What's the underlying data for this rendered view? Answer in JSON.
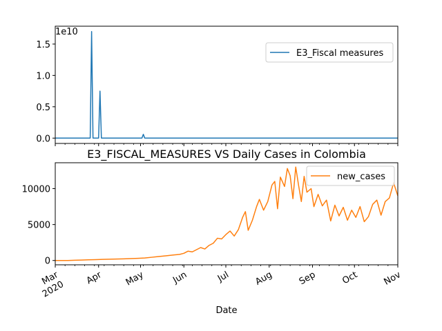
{
  "chart_data": [
    {
      "type": "line",
      "title": "",
      "ylabel": "",
      "xlabel": "",
      "y_offset_label": "1e10",
      "ylim": [
        -0.085,
        1.785
      ],
      "yticks": [
        0.0,
        0.5,
        1.0,
        1.5
      ],
      "yticklabels": [
        "0.0",
        "0.5",
        "1.0",
        "1.5"
      ],
      "legend": {
        "position": "top-right",
        "entries": [
          "E3_Fiscal measures"
        ]
      },
      "color": "#1f77b4",
      "series": [
        {
          "name": "E3_Fiscal measures",
          "points": [
            [
              "2020-03-01",
              0
            ],
            [
              "2020-03-26",
              0
            ],
            [
              "2020-03-27",
              1.7
            ],
            [
              "2020-03-28",
              0
            ],
            [
              "2020-04-01",
              0
            ],
            [
              "2020-04-02",
              0.75
            ],
            [
              "2020-04-03",
              0
            ],
            [
              "2020-05-02",
              0
            ],
            [
              "2020-05-03",
              0.06
            ],
            [
              "2020-05-04",
              0
            ],
            [
              "2020-11-01",
              0
            ]
          ]
        }
      ]
    },
    {
      "type": "line",
      "title": "E3_FISCAL_MEASURES VS Daily Cases in Colombia",
      "xlabel": "Date",
      "ylabel": "",
      "ylim": [
        -600,
        13600
      ],
      "yticks": [
        0,
        5000,
        10000
      ],
      "yticklabels": [
        "0",
        "5000",
        "10000"
      ],
      "xlim": [
        "2020-03-01",
        "2020-11-01"
      ],
      "xticks": [
        "2020-03-01",
        "2020-04-01",
        "2020-05-01",
        "2020-06-01",
        "2020-07-01",
        "2020-08-01",
        "2020-09-01",
        "2020-10-01",
        "2020-11-01"
      ],
      "xticklabels": [
        "Mar",
        "Apr",
        "May",
        "Jun",
        "Jul",
        "Aug",
        "Sep",
        "Oct",
        "Nov"
      ],
      "year_label": "2020",
      "legend": {
        "position": "top-right",
        "entries": [
          "new_cases"
        ]
      },
      "color": "#ff7f0e",
      "series": [
        {
          "name": "new_cases",
          "points": [
            [
              "2020-03-01",
              0
            ],
            [
              "2020-03-10",
              3
            ],
            [
              "2020-03-15",
              30
            ],
            [
              "2020-03-20",
              60
            ],
            [
              "2020-03-25",
              100
            ],
            [
              "2020-03-30",
              120
            ],
            [
              "2020-04-04",
              150
            ],
            [
              "2020-04-09",
              180
            ],
            [
              "2020-04-14",
              200
            ],
            [
              "2020-04-19",
              230
            ],
            [
              "2020-04-24",
              260
            ],
            [
              "2020-04-29",
              300
            ],
            [
              "2020-05-04",
              350
            ],
            [
              "2020-05-09",
              450
            ],
            [
              "2020-05-14",
              550
            ],
            [
              "2020-05-19",
              650
            ],
            [
              "2020-05-24",
              750
            ],
            [
              "2020-05-29",
              850
            ],
            [
              "2020-06-01",
              1000
            ],
            [
              "2020-06-04",
              1300
            ],
            [
              "2020-06-07",
              1200
            ],
            [
              "2020-06-10",
              1500
            ],
            [
              "2020-06-13",
              1800
            ],
            [
              "2020-06-16",
              1600
            ],
            [
              "2020-06-19",
              2100
            ],
            [
              "2020-06-22",
              2400
            ],
            [
              "2020-06-25",
              3100
            ],
            [
              "2020-06-28",
              3000
            ],
            [
              "2020-07-01",
              3600
            ],
            [
              "2020-07-04",
              4100
            ],
            [
              "2020-07-07",
              3400
            ],
            [
              "2020-07-10",
              4300
            ],
            [
              "2020-07-13",
              6000
            ],
            [
              "2020-07-15",
              6800
            ],
            [
              "2020-07-17",
              4200
            ],
            [
              "2020-07-20",
              5600
            ],
            [
              "2020-07-23",
              7500
            ],
            [
              "2020-07-25",
              8500
            ],
            [
              "2020-07-28",
              7000
            ],
            [
              "2020-07-31",
              8200
            ],
            [
              "2020-08-03",
              10500
            ],
            [
              "2020-08-05",
              11000
            ],
            [
              "2020-08-07",
              7200
            ],
            [
              "2020-08-09",
              11600
            ],
            [
              "2020-08-12",
              10300
            ],
            [
              "2020-08-14",
              12800
            ],
            [
              "2020-08-16",
              11800
            ],
            [
              "2020-08-18",
              8600
            ],
            [
              "2020-08-20",
              13000
            ],
            [
              "2020-08-22",
              10500
            ],
            [
              "2020-08-24",
              8200
            ],
            [
              "2020-08-26",
              11700
            ],
            [
              "2020-08-28",
              9500
            ],
            [
              "2020-08-31",
              10000
            ],
            [
              "2020-09-02",
              7500
            ],
            [
              "2020-09-05",
              9200
            ],
            [
              "2020-09-08",
              7600
            ],
            [
              "2020-09-11",
              8400
            ],
            [
              "2020-09-14",
              5500
            ],
            [
              "2020-09-17",
              7700
            ],
            [
              "2020-09-20",
              6200
            ],
            [
              "2020-09-23",
              7400
            ],
            [
              "2020-09-26",
              5600
            ],
            [
              "2020-09-29",
              7000
            ],
            [
              "2020-10-02",
              6000
            ],
            [
              "2020-10-05",
              7500
            ],
            [
              "2020-10-08",
              5400
            ],
            [
              "2020-10-11",
              6100
            ],
            [
              "2020-10-14",
              7800
            ],
            [
              "2020-10-17",
              8400
            ],
            [
              "2020-10-20",
              6300
            ],
            [
              "2020-10-23",
              8200
            ],
            [
              "2020-10-26",
              8700
            ],
            [
              "2020-10-29",
              10800
            ],
            [
              "2020-11-01",
              9000
            ]
          ]
        }
      ]
    }
  ]
}
